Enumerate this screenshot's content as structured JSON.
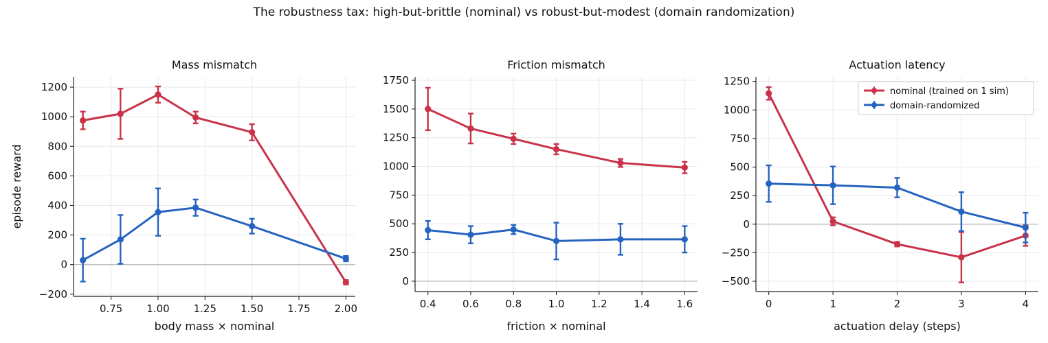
{
  "figure": {
    "title": "The robustness tax: high-but-brittle (nominal) vs robust-but-modest (domain randomization)"
  },
  "colors": {
    "nominal": "#c8334a",
    "dr": "#2563c0",
    "grid": "#e8e8e8",
    "zero": "#bdbdbd"
  },
  "chart_data": [
    {
      "type": "line",
      "title": "Mass mismatch",
      "xlabel": "body mass × nominal",
      "ylabel": "episode reward",
      "xlim": [
        0.55,
        2.05
      ],
      "ylim": [
        -215,
        1270
      ],
      "xticks": [
        0.75,
        1.0,
        1.25,
        1.5,
        1.75,
        2.0
      ],
      "xtick_labels": [
        "0.75",
        "1.00",
        "1.25",
        "1.50",
        "1.75",
        "2.00"
      ],
      "yticks": [
        -200,
        0,
        200,
        400,
        600,
        800,
        1000,
        1200
      ],
      "ytick_labels": [
        "−200",
        "0",
        "200",
        "400",
        "600",
        "800",
        "1000",
        "1200"
      ],
      "grid": true,
      "zero_line": true,
      "series": [
        {
          "name": "nominal (trained on 1 sim)",
          "x": [
            0.6,
            0.8,
            1.0,
            1.2,
            1.5,
            2.0
          ],
          "y": [
            975,
            1020,
            1150,
            995,
            895,
            -120
          ],
          "err": [
            60,
            170,
            55,
            40,
            55,
            15
          ]
        },
        {
          "name": "domain-randomized",
          "x": [
            0.6,
            0.8,
            1.0,
            1.2,
            1.5,
            2.0
          ],
          "y": [
            30,
            170,
            355,
            385,
            260,
            40
          ],
          "err": [
            145,
            165,
            160,
            55,
            50,
            18
          ]
        }
      ]
    },
    {
      "type": "line",
      "title": "Friction mismatch",
      "xlabel": "friction × nominal",
      "ylabel": "",
      "xlim": [
        0.34,
        1.66
      ],
      "ylim": [
        -90,
        1780
      ],
      "xticks": [
        0.4,
        0.6,
        0.8,
        1.0,
        1.2,
        1.4,
        1.6
      ],
      "xtick_labels": [
        "0.4",
        "0.6",
        "0.8",
        "1.0",
        "1.2",
        "1.4",
        "1.6"
      ],
      "yticks": [
        0,
        250,
        500,
        750,
        1000,
        1250,
        1500,
        1750
      ],
      "ytick_labels": [
        "0",
        "250",
        "500",
        "750",
        "1000",
        "1250",
        "1500",
        "1750"
      ],
      "grid": true,
      "zero_line": true,
      "series": [
        {
          "name": "nominal (trained on 1 sim)",
          "x": [
            0.4,
            0.6,
            0.8,
            1.0,
            1.3,
            1.6
          ],
          "y": [
            1500,
            1330,
            1240,
            1150,
            1030,
            990
          ],
          "err": [
            185,
            130,
            45,
            45,
            35,
            50
          ]
        },
        {
          "name": "domain-randomized",
          "x": [
            0.4,
            0.6,
            0.8,
            1.0,
            1.3,
            1.6
          ],
          "y": [
            445,
            405,
            450,
            350,
            365,
            365
          ],
          "err": [
            80,
            75,
            40,
            160,
            135,
            115
          ]
        }
      ]
    },
    {
      "type": "line",
      "title": "Actuation latency",
      "xlabel": "actuation delay (steps)",
      "ylabel": "",
      "xlim": [
        -0.2,
        4.2
      ],
      "ylim": [
        -590,
        1290
      ],
      "xticks": [
        0,
        1,
        2,
        3,
        4
      ],
      "xtick_labels": [
        "0",
        "1",
        "2",
        "3",
        "4"
      ],
      "yticks": [
        -500,
        -250,
        0,
        250,
        500,
        750,
        1000,
        1250
      ],
      "ytick_labels": [
        "−500",
        "−250",
        "0",
        "250",
        "500",
        "750",
        "1000",
        "1250"
      ],
      "grid": true,
      "zero_line": true,
      "legend": "top-right",
      "series": [
        {
          "name": "nominal (trained on 1 sim)",
          "x": [
            0,
            1,
            2,
            3,
            4
          ],
          "y": [
            1145,
            25,
            -175,
            -290,
            -100
          ],
          "err": [
            55,
            35,
            20,
            220,
            90
          ]
        },
        {
          "name": "domain-randomized",
          "x": [
            0,
            1,
            2,
            3,
            4
          ],
          "y": [
            355,
            340,
            320,
            110,
            -30
          ],
          "err": [
            160,
            165,
            85,
            170,
            130
          ]
        }
      ]
    }
  ]
}
